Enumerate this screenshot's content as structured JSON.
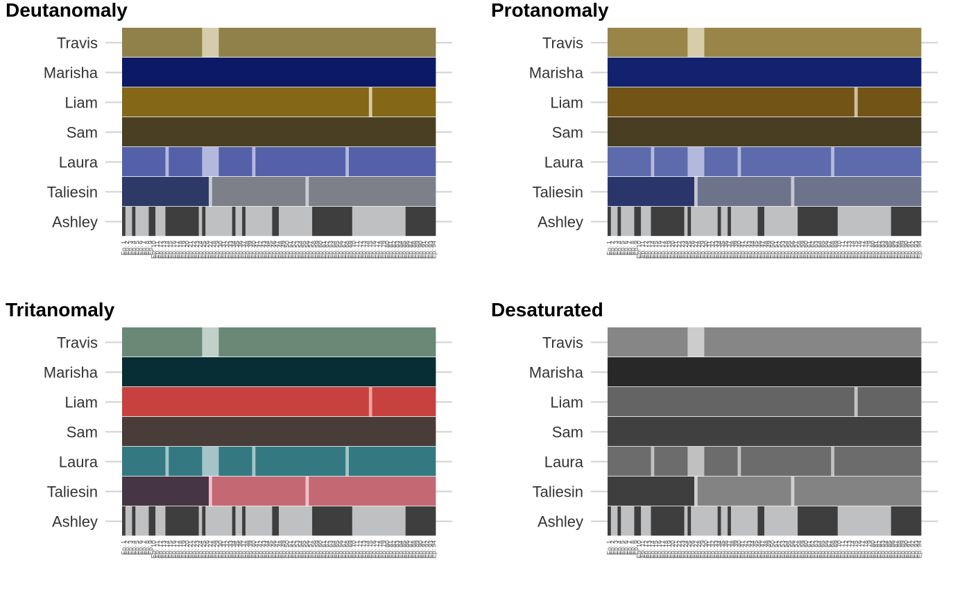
{
  "chart_data": [
    {
      "type": "heatmap",
      "title": "Deutanomaly",
      "rows": [
        "Travis",
        "Marisha",
        "Liam",
        "Sam",
        "Laura",
        "Taliesin",
        "Ashley"
      ],
      "x_range_episodes": [
        1,
        94
      ],
      "row_colors": {
        "Travis": {
          "main": "#8f8149",
          "highlight": "#d4ccac"
        },
        "Marisha": {
          "main": "#0c1967",
          "highlight": "#0c1967"
        },
        "Liam": {
          "main": "#846717",
          "highlight": "#d7caa3"
        },
        "Sam": {
          "main": "#4a3f22",
          "highlight": "#4a3f22"
        },
        "Laura": {
          "main": "#5461a9",
          "highlight": "#b3b9de"
        },
        "Taliesin": {
          "main": "#2d3a68",
          "alt": "#7d8089",
          "highlight": "#c8cbd2"
        },
        "Ashley": {
          "dark": "#3e3e3e",
          "light": "#bfc0c2"
        }
      }
    },
    {
      "type": "heatmap",
      "title": "Protanomaly",
      "rows": [
        "Travis",
        "Marisha",
        "Liam",
        "Sam",
        "Laura",
        "Taliesin",
        "Ashley"
      ],
      "x_range_episodes": [
        1,
        94
      ],
      "row_colors": {
        "Travis": {
          "main": "#9a8549",
          "highlight": "#d7cdab"
        },
        "Marisha": {
          "main": "#13226f",
          "highlight": "#13226f"
        },
        "Liam": {
          "main": "#715416",
          "highlight": "#cfc0a0"
        },
        "Sam": {
          "main": "#493e22",
          "highlight": "#493e22"
        },
        "Laura": {
          "main": "#5d6bac",
          "highlight": "#b3b9dc"
        },
        "Taliesin": {
          "main": "#2a366b",
          "alt": "#6e738c",
          "highlight": "#c3c6d3"
        },
        "Ashley": {
          "dark": "#3e3e3e",
          "light": "#bfc0c2"
        }
      }
    },
    {
      "type": "heatmap",
      "title": "Tritanomaly",
      "rows": [
        "Travis",
        "Marisha",
        "Liam",
        "Sam",
        "Laura",
        "Taliesin",
        "Ashley"
      ],
      "x_range_episodes": [
        1,
        94
      ],
      "row_colors": {
        "Travis": {
          "main": "#6a8876",
          "highlight": "#c1d0c8"
        },
        "Marisha": {
          "main": "#072d35",
          "highlight": "#072d35"
        },
        "Liam": {
          "main": "#c7413f",
          "highlight": "#f0a0a0"
        },
        "Sam": {
          "main": "#483d38",
          "highlight": "#483d38"
        },
        "Laura": {
          "main": "#347982",
          "highlight": "#a4c4c8"
        },
        "Taliesin": {
          "main": "#463643",
          "alt": "#c46874",
          "highlight": "#f0c0c8"
        },
        "Ashley": {
          "dark": "#3e3e3e",
          "light": "#bfc0c2"
        }
      }
    },
    {
      "type": "heatmap",
      "title": "Desaturated",
      "rows": [
        "Travis",
        "Marisha",
        "Liam",
        "Sam",
        "Laura",
        "Taliesin",
        "Ashley"
      ],
      "x_range_episodes": [
        1,
        94
      ],
      "row_colors": {
        "Travis": {
          "main": "#868686",
          "highlight": "#cccccc"
        },
        "Marisha": {
          "main": "#282828",
          "highlight": "#282828"
        },
        "Liam": {
          "main": "#646464",
          "highlight": "#c4c4c4"
        },
        "Sam": {
          "main": "#404040",
          "highlight": "#404040"
        },
        "Laura": {
          "main": "#6c6c6c",
          "highlight": "#c0c0c0"
        },
        "Taliesin": {
          "main": "#3e3e3e",
          "alt": "#838383",
          "highlight": "#cfcfcf"
        },
        "Ashley": {
          "dark": "#3e3e3e",
          "light": "#bfc0c2"
        }
      }
    }
  ],
  "episode_segments": {
    "Travis": [
      {
        "from": 1,
        "to": 24,
        "c": "main"
      },
      {
        "from": 25,
        "to": 29,
        "c": "highlight"
      },
      {
        "from": 30,
        "to": 94,
        "c": "main"
      }
    ],
    "Marisha": [
      {
        "from": 1,
        "to": 94,
        "c": "main"
      }
    ],
    "Liam": [
      {
        "from": 1,
        "to": 74,
        "c": "main"
      },
      {
        "from": 75,
        "to": 75,
        "c": "highlight"
      },
      {
        "from": 76,
        "to": 94,
        "c": "main"
      }
    ],
    "Sam": [
      {
        "from": 1,
        "to": 94,
        "c": "main"
      }
    ],
    "Laura": [
      {
        "from": 1,
        "to": 13,
        "c": "main"
      },
      {
        "from": 14,
        "to": 14,
        "c": "highlight"
      },
      {
        "from": 15,
        "to": 24,
        "c": "main"
      },
      {
        "from": 25,
        "to": 29,
        "c": "highlight"
      },
      {
        "from": 30,
        "to": 39,
        "c": "main"
      },
      {
        "from": 40,
        "to": 40,
        "c": "highlight"
      },
      {
        "from": 41,
        "to": 67,
        "c": "main"
      },
      {
        "from": 68,
        "to": 68,
        "c": "highlight"
      },
      {
        "from": 69,
        "to": 94,
        "c": "main"
      }
    ],
    "Taliesin": [
      {
        "from": 1,
        "to": 26,
        "c": "main"
      },
      {
        "from": 27,
        "to": 27,
        "c": "highlight"
      },
      {
        "from": 28,
        "to": 55,
        "c": "alt"
      },
      {
        "from": 56,
        "to": 56,
        "c": "highlight"
      },
      {
        "from": 57,
        "to": 94,
        "c": "alt"
      }
    ],
    "Ashley": [
      {
        "from": 1,
        "to": 1,
        "c": "dark"
      },
      {
        "from": 2,
        "to": 3,
        "c": "light"
      },
      {
        "from": 4,
        "to": 4,
        "c": "dark"
      },
      {
        "from": 5,
        "to": 8,
        "c": "light"
      },
      {
        "from": 9,
        "to": 10,
        "c": "dark"
      },
      {
        "from": 11,
        "to": 13,
        "c": "light"
      },
      {
        "from": 14,
        "to": 23,
        "c": "dark"
      },
      {
        "from": 24,
        "to": 24,
        "c": "light"
      },
      {
        "from": 25,
        "to": 25,
        "c": "dark"
      },
      {
        "from": 26,
        "to": 33,
        "c": "light"
      },
      {
        "from": 34,
        "to": 34,
        "c": "dark"
      },
      {
        "from": 35,
        "to": 36,
        "c": "light"
      },
      {
        "from": 37,
        "to": 37,
        "c": "dark"
      },
      {
        "from": 38,
        "to": 45,
        "c": "light"
      },
      {
        "from": 46,
        "to": 47,
        "c": "dark"
      },
      {
        "from": 48,
        "to": 57,
        "c": "light"
      },
      {
        "from": 58,
        "to": 69,
        "c": "dark"
      },
      {
        "from": 70,
        "to": 85,
        "c": "light"
      },
      {
        "from": 86,
        "to": 94,
        "c": "dark"
      }
    ]
  },
  "x_ticks": [
    "Ep. 1",
    "Ep. 2",
    "Ep. 3",
    "Ep. 4",
    "Ep. 5",
    "Ep. 6",
    "Ep. 7",
    "Ep. 8",
    "Ep. 9",
    "Ep. 10",
    "Ep. 11",
    "Ep. 12",
    "Ep. 13",
    "Ep. 14",
    "Ep. 15",
    "Ep. 16",
    "Ep. 17",
    "Ep. 18",
    "Ep. 19",
    "Ep. 20",
    "Ep. 21",
    "Ep. 22",
    "Ep. 23",
    "Ep. 24",
    "Ep. 25",
    "Ep. 26",
    "Ep. 27",
    "Ep. 28",
    "Ep. 29",
    "Ep. 30",
    "Ep. 31",
    "Ep. 32",
    "Ep. 33",
    "Ep. 34",
    "Ep. 35",
    "Ep. 36",
    "Ep. 37",
    "Ep. 38",
    "Ep. 39",
    "Ep. 40",
    "Ep. 41",
    "Ep. 42",
    "Ep. 43",
    "Ep. 44",
    "Ep. 45",
    "Ep. 46",
    "Ep. 47",
    "Ep. 48",
    "Ep. 49",
    "Ep. 50",
    "Ep. 51",
    "Ep. 52",
    "Ep. 53",
    "Ep. 54",
    "Ep. 55",
    "Ep. 56",
    "Ep. 57",
    "Ep. 58",
    "Ep. 59",
    "Ep. 60",
    "Ep. 61",
    "Ep. 62",
    "Ep. 63",
    "Ep. 64",
    "Ep. 65",
    "Ep. 66",
    "Ep. 67",
    "Ep. 68",
    "Ep. 69",
    "Ep. 70",
    "Ep. 71",
    "Ep. 72",
    "Ep. 73",
    "Ep. 74",
    "Ep. 75",
    "Ep. 76",
    "Ep. 77",
    "Ep. 78",
    "Ep. 79",
    "Ep. 80",
    "Ep. 81",
    "Ep. 82",
    "Ep. 83",
    "Ep. 84",
    "Ep. 85",
    "Ep. 86",
    "Ep. 87",
    "Ep. 88",
    "Ep. 89",
    "Ep. 90",
    "Ep. 91",
    "Ep. 92",
    "Ep. 93",
    "Ep. 94"
  ],
  "style": {
    "gridline_color": "#d0d0d0",
    "ylabel_color": "#333333",
    "xtick_color": "#555555"
  }
}
